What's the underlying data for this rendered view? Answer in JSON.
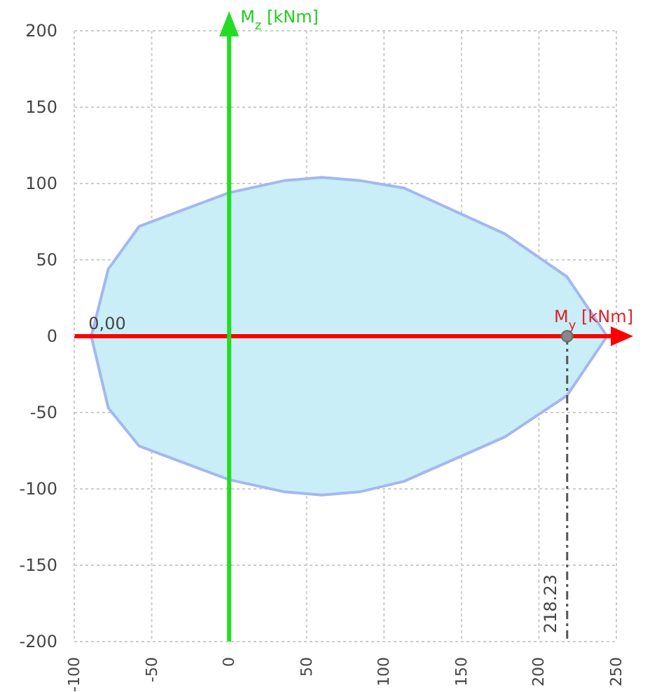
{
  "chart_data": {
    "type": "area",
    "xlabel": "M$_{y}$ [kNm]",
    "ylabel": "M$_{z}$ [kNm]",
    "xlim": [
      -100,
      250
    ],
    "xticks": [
      -100,
      -50,
      0,
      50,
      100,
      150,
      200,
      250
    ],
    "ylim": [
      -200,
      200
    ],
    "yticks": [
      -200,
      -150,
      -100,
      -50,
      0,
      50,
      100,
      150,
      200
    ],
    "grid": true,
    "line_style": "solid",
    "series": [
      {
        "type": "scatter",
        "color": "#888888",
        "x": [
          218.23
        ],
        "values": [
          0
        ]
      },
      {
        "color": "#a3b8ef",
        "x": [
          -89,
          -78,
          -58,
          0,
          36,
          60,
          84,
          113,
          178,
          218,
          244,
          218,
          178,
          113,
          84,
          60,
          36,
          0,
          -58,
          -78,
          -89
        ],
        "values": [
          0,
          44,
          72,
          94,
          102,
          104,
          102,
          97,
          67,
          39,
          0,
          -39,
          -66,
          -95,
          -102,
          -104,
          -102,
          -94,
          -72,
          -47,
          0
        ]
      }
    ],
    "ref_lines": [
      {
        "axis": "y",
        "value": 0,
        "color": "#ff0000"
      },
      {
        "axis": "x",
        "value": 0,
        "color": "#22dd22"
      },
      {
        "axis": "x",
        "value": 218.23,
        "label": "218.23",
        "color": "#555555",
        "line_style": "dashed"
      }
    ],
    "annotations": [
      {
        "text": "0,00",
        "x": -89,
        "y": 0
      }
    ]
  }
}
